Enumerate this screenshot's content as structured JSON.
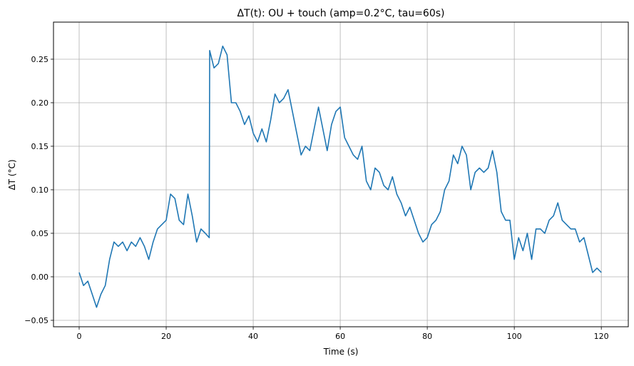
{
  "chart_data": {
    "type": "line",
    "title": "ΔT(t): OU + touch (amp=0.2°C, tau=60s)",
    "xlabel": "Time (s)",
    "ylabel": "ΔT (°C)",
    "xlim": [
      -5.9,
      126.2
    ],
    "ylim": [
      -0.0574,
      0.2926
    ],
    "xticks": [
      0,
      20,
      40,
      60,
      80,
      100,
      120
    ],
    "xtick_labels": [
      "0",
      "20",
      "40",
      "60",
      "80",
      "100",
      "120"
    ],
    "yticks": [
      -0.05,
      0.0,
      0.05,
      0.1,
      0.15,
      0.2,
      0.25
    ],
    "ytick_labels": [
      "−0.05",
      "0.00",
      "0.05",
      "0.10",
      "0.15",
      "0.20",
      "0.25"
    ],
    "grid": true,
    "color": "#1f77b4",
    "series": [
      {
        "x": [
          0,
          1,
          2,
          3,
          4,
          5,
          6,
          7,
          8,
          9,
          10,
          11,
          12,
          13,
          14,
          15,
          16,
          17,
          18,
          19,
          20,
          21,
          22,
          23,
          24,
          25,
          26,
          27,
          28,
          29,
          29.9,
          30,
          31,
          32,
          33,
          34,
          35,
          36,
          37,
          38,
          39,
          40,
          41,
          42,
          43,
          44,
          45,
          46,
          47,
          48,
          49,
          50,
          51,
          52,
          53,
          54,
          55,
          56,
          57,
          58,
          59,
          60,
          61,
          62,
          63,
          64,
          65,
          66,
          67,
          68,
          69,
          70,
          71,
          72,
          73,
          74,
          75,
          76,
          77,
          78,
          79,
          80,
          81,
          82,
          83,
          84,
          85,
          86,
          87,
          88,
          89,
          90,
          91,
          92,
          93,
          94,
          95,
          96,
          97,
          98,
          99,
          100,
          101,
          102,
          103,
          104,
          105,
          106,
          107,
          108,
          109,
          110,
          111,
          112,
          113,
          114,
          115,
          116,
          117,
          118,
          119,
          120
        ],
        "y": [
          0.005,
          -0.01,
          -0.005,
          -0.02,
          -0.035,
          -0.02,
          -0.01,
          0.02,
          0.04,
          0.035,
          0.04,
          0.03,
          0.04,
          0.035,
          0.045,
          0.035,
          0.02,
          0.04,
          0.055,
          0.06,
          0.065,
          0.095,
          0.09,
          0.065,
          0.06,
          0.095,
          0.07,
          0.04,
          0.055,
          0.05,
          0.045,
          0.26,
          0.24,
          0.245,
          0.265,
          0.255,
          0.2,
          0.2,
          0.19,
          0.175,
          0.185,
          0.165,
          0.155,
          0.17,
          0.155,
          0.18,
          0.21,
          0.2,
          0.205,
          0.215,
          0.19,
          0.165,
          0.14,
          0.15,
          0.145,
          0.17,
          0.195,
          0.17,
          0.145,
          0.175,
          0.19,
          0.195,
          0.16,
          0.15,
          0.14,
          0.135,
          0.15,
          0.11,
          0.1,
          0.125,
          0.12,
          0.105,
          0.1,
          0.115,
          0.095,
          0.085,
          0.07,
          0.08,
          0.065,
          0.05,
          0.04,
          0.045,
          0.06,
          0.065,
          0.075,
          0.1,
          0.11,
          0.14,
          0.13,
          0.15,
          0.14,
          0.1,
          0.12,
          0.125,
          0.12,
          0.125,
          0.145,
          0.12,
          0.075,
          0.065,
          0.065,
          0.02,
          0.045,
          0.03,
          0.05,
          0.02,
          0.055,
          0.055,
          0.05,
          0.065,
          0.07,
          0.085,
          0.065,
          0.06,
          0.055,
          0.055,
          0.04,
          0.045,
          0.025,
          0.005,
          0.01,
          0.005
        ]
      }
    ]
  }
}
